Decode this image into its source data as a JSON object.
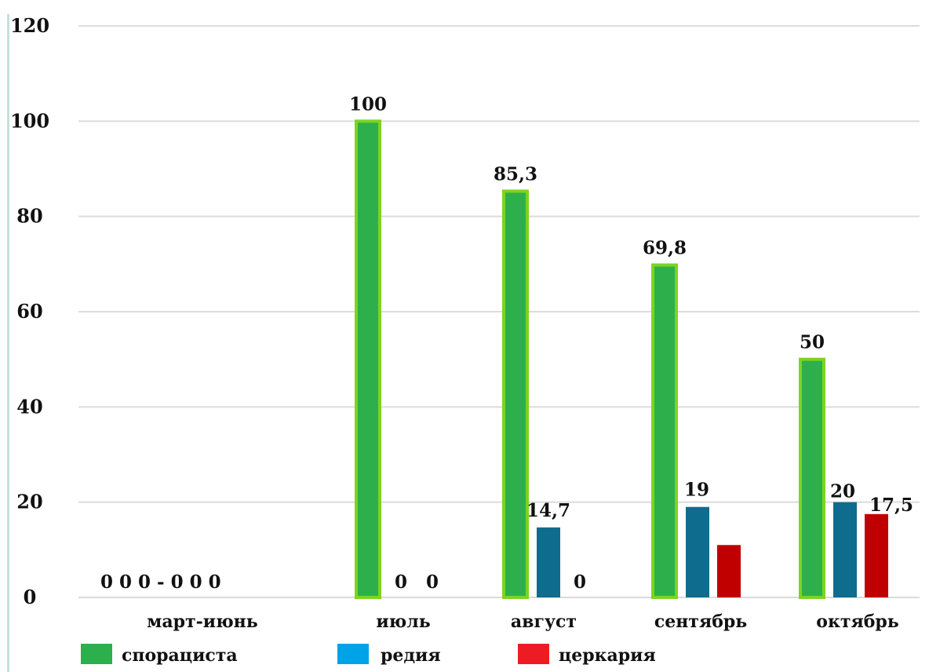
{
  "chart_data": {
    "type": "bar",
    "title": "",
    "xlabel": "",
    "ylabel": "",
    "ylim": [
      0,
      120
    ],
    "yticks": [
      0,
      20,
      40,
      60,
      80,
      100,
      120
    ],
    "grid": true,
    "legend_position": "bottom-left",
    "categories": [
      "март-июнь",
      "июль",
      "август",
      "сентябрь",
      "октябрь"
    ],
    "series": [
      {
        "name": "спорациста",
        "color": "#2db04b",
        "border": "#7ed321",
        "values": [
          0,
          100,
          85.3,
          69.8,
          50
        ],
        "labels": [
          "",
          "100",
          "85,3",
          "69,8",
          "50"
        ]
      },
      {
        "name": "редия",
        "color": "#0e6c8e",
        "legend_color": "#00a2e8",
        "values": [
          0,
          0,
          14.7,
          19,
          20
        ],
        "labels": [
          "",
          "0",
          "14,7",
          "19",
          "20"
        ]
      },
      {
        "name": "церкария",
        "color": "#c00000",
        "legend_color": "#ed1c24",
        "values": [
          0,
          null,
          0,
          11,
          17.5
        ],
        "labels": [
          "",
          "0",
          "0",
          "",
          "17,5"
        ]
      }
    ],
    "baseline_note": "0 0 0 - 0 0 0"
  }
}
